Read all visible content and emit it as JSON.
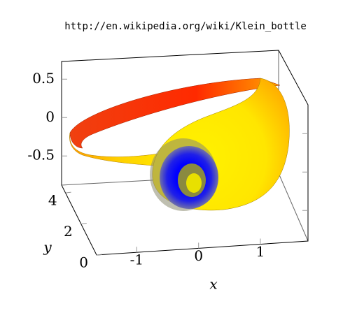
{
  "chart_data": {
    "type": "surface3d",
    "title": "http://en.wikipedia.org/wiki/Klein_bottle",
    "xlabel": "x",
    "ylabel": "y",
    "xlim": [
      -1.65,
      1.77
    ],
    "xticks": [
      -1,
      0,
      1
    ],
    "ylim": [
      0,
      4.5
    ],
    "yticks": [
      0,
      2,
      4
    ],
    "zlim": [
      -0.88,
      0.73
    ],
    "zticks": [
      -0.5,
      0,
      0.5
    ]
  }
}
